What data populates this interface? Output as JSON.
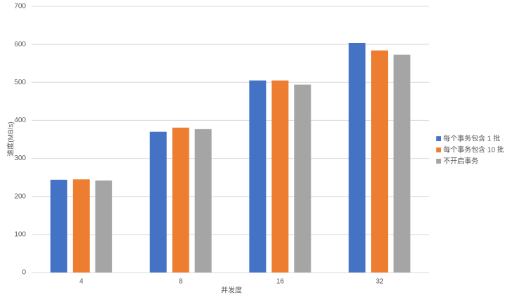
{
  "chart_data": {
    "type": "bar",
    "x_label": "并发度",
    "y_label": "速度(MB/s)",
    "categories": [
      "4",
      "8",
      "16",
      "32"
    ],
    "series": [
      {
        "name": "每个事务包含 1 批",
        "color": "#4472c4",
        "values": [
          244,
          370,
          505,
          604
        ]
      },
      {
        "name": "每个事务包含 10 批",
        "color": "#ed7d31",
        "values": [
          245,
          381,
          505,
          584
        ]
      },
      {
        "name": "不开启事务",
        "color": "#a5a5a5",
        "values": [
          242,
          377,
          494,
          573
        ]
      }
    ],
    "ylim": [
      0,
      700
    ],
    "yticks": [
      0,
      100,
      200,
      300,
      400,
      500,
      600,
      700
    ],
    "grid": true,
    "legend": "right"
  }
}
